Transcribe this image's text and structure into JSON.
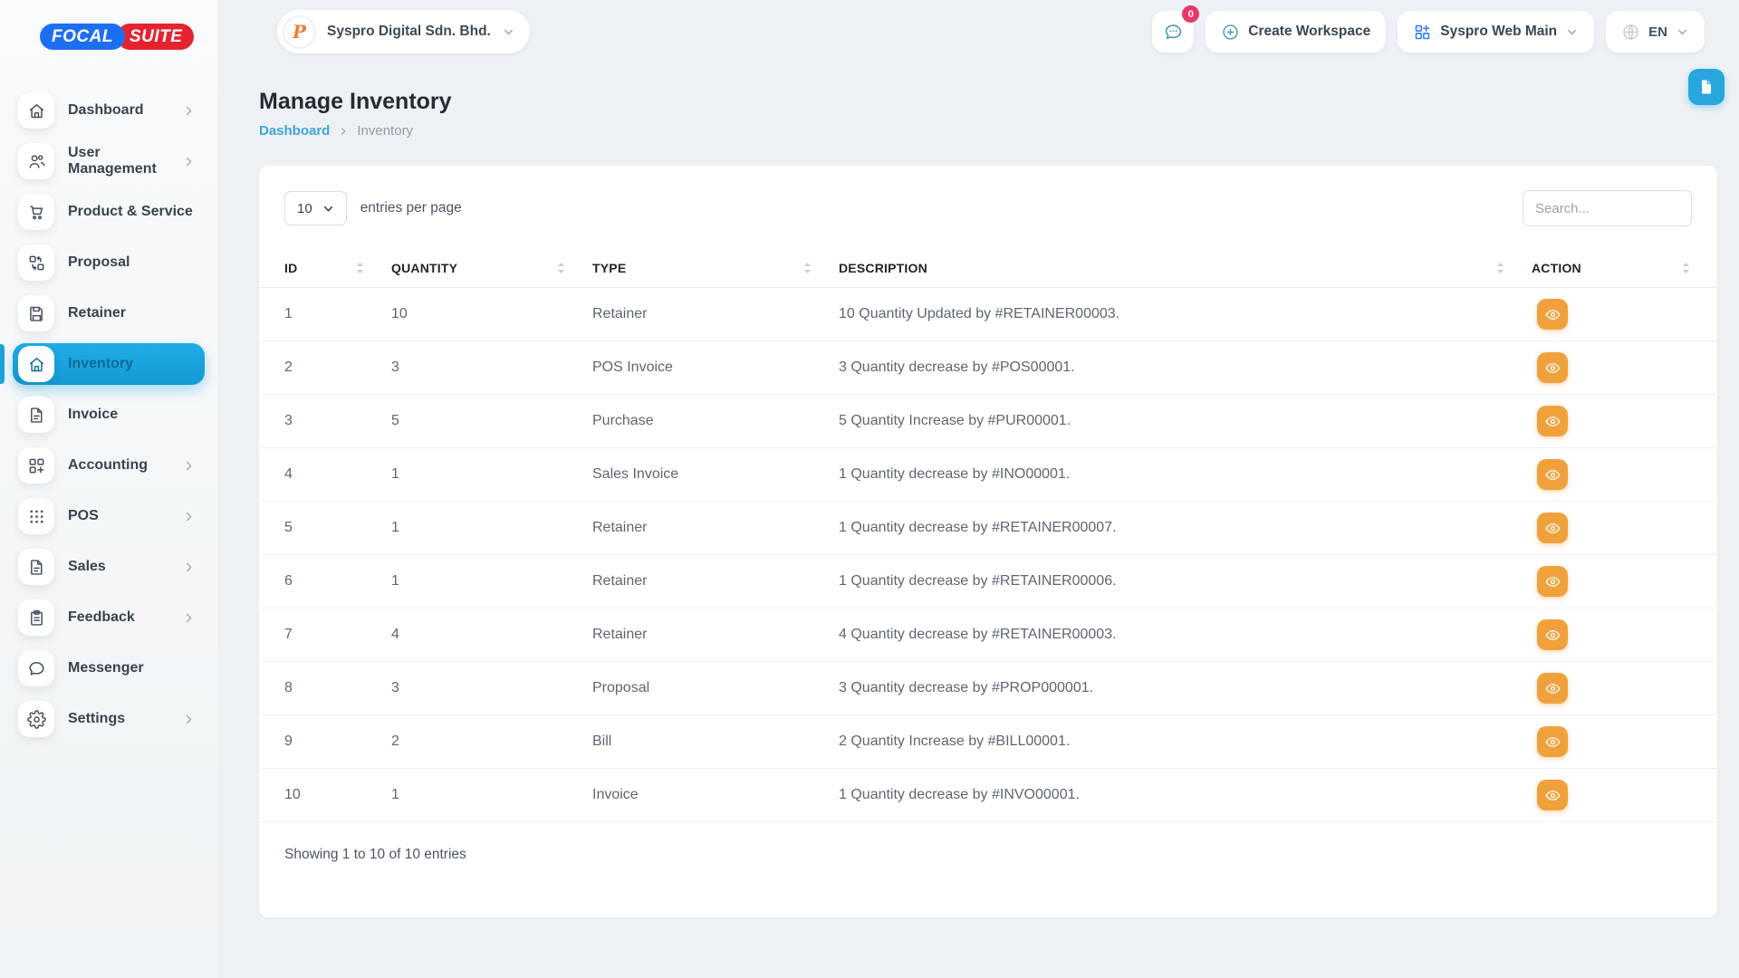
{
  "brand": {
    "logo_left": "FOCAL",
    "logo_right": "SUITE"
  },
  "header": {
    "workspace_name": "Syspro Digital Sdn. Bhd.",
    "workspace_avatar_letter": "P",
    "chat_badge_count": "0",
    "create_workspace_label": "Create Workspace",
    "workspace_menu_label": "Syspro Web Main",
    "language": "EN"
  },
  "sidebar": {
    "items": [
      {
        "label": "Dashboard",
        "icon": "home",
        "has_children": true,
        "active": false
      },
      {
        "label": "User Management",
        "icon": "users",
        "has_children": true,
        "active": false
      },
      {
        "label": "Product & Service",
        "icon": "cart",
        "has_children": false,
        "active": false
      },
      {
        "label": "Proposal",
        "icon": "swap",
        "has_children": false,
        "active": false
      },
      {
        "label": "Retainer",
        "icon": "save",
        "has_children": false,
        "active": false
      },
      {
        "label": "Inventory",
        "icon": "home",
        "has_children": false,
        "active": true
      },
      {
        "label": "Invoice",
        "icon": "file",
        "has_children": false,
        "active": false
      },
      {
        "label": "Accounting",
        "icon": "grid-plus",
        "has_children": true,
        "active": false
      },
      {
        "label": "POS",
        "icon": "dots",
        "has_children": true,
        "active": false
      },
      {
        "label": "Sales",
        "icon": "file",
        "has_children": true,
        "active": false
      },
      {
        "label": "Feedback",
        "icon": "clipboard",
        "has_children": true,
        "active": false
      },
      {
        "label": "Messenger",
        "icon": "chat",
        "has_children": false,
        "active": false
      },
      {
        "label": "Settings",
        "icon": "gear",
        "has_children": true,
        "active": false
      }
    ]
  },
  "page": {
    "title": "Manage Inventory",
    "breadcrumb": {
      "parent": "Dashboard",
      "current": "Inventory"
    }
  },
  "table_controls": {
    "page_size": "10",
    "entries_label": "entries per page",
    "search_placeholder": "Search..."
  },
  "table": {
    "columns": [
      "ID",
      "QUANTITY",
      "TYPE",
      "DESCRIPTION",
      "ACTION"
    ],
    "rows": [
      {
        "id": "1",
        "quantity": "10",
        "type": "Retainer",
        "description": "10 Quantity Updated by #RETAINER00003."
      },
      {
        "id": "2",
        "quantity": "3",
        "type": "POS Invoice",
        "description": "3 Quantity decrease by #POS00001."
      },
      {
        "id": "3",
        "quantity": "5",
        "type": "Purchase",
        "description": "5 Quantity Increase by #PUR00001."
      },
      {
        "id": "4",
        "quantity": "1",
        "type": "Sales Invoice",
        "description": "1 Quantity decrease by #INO00001."
      },
      {
        "id": "5",
        "quantity": "1",
        "type": "Retainer",
        "description": "1 Quantity decrease by #RETAINER00007."
      },
      {
        "id": "6",
        "quantity": "1",
        "type": "Retainer",
        "description": "1 Quantity decrease by #RETAINER00006."
      },
      {
        "id": "7",
        "quantity": "4",
        "type": "Retainer",
        "description": "4 Quantity decrease by #RETAINER00003."
      },
      {
        "id": "8",
        "quantity": "3",
        "type": "Proposal",
        "description": "3 Quantity decrease by #PROP000001."
      },
      {
        "id": "9",
        "quantity": "2",
        "type": "Bill",
        "description": "2 Quantity Increase by #BILL00001."
      },
      {
        "id": "10",
        "quantity": "1",
        "type": "Invoice",
        "description": "1 Quantity decrease by #INVO00001."
      }
    ]
  },
  "footer": {
    "summary": "Showing 1 to 10 of 10 entries"
  },
  "colors": {
    "accent": "#1BA2DB",
    "accent-text": "#0E6A99",
    "brand-blue": "#1D6FF2",
    "brand-red": "#E52330",
    "action-orange": "#F1A13B",
    "badge-pink": "#E8386B",
    "link-blue": "#3FA3DC",
    "icon-blue": "#2F80ED",
    "teal-icon": "#4D9AB8"
  }
}
